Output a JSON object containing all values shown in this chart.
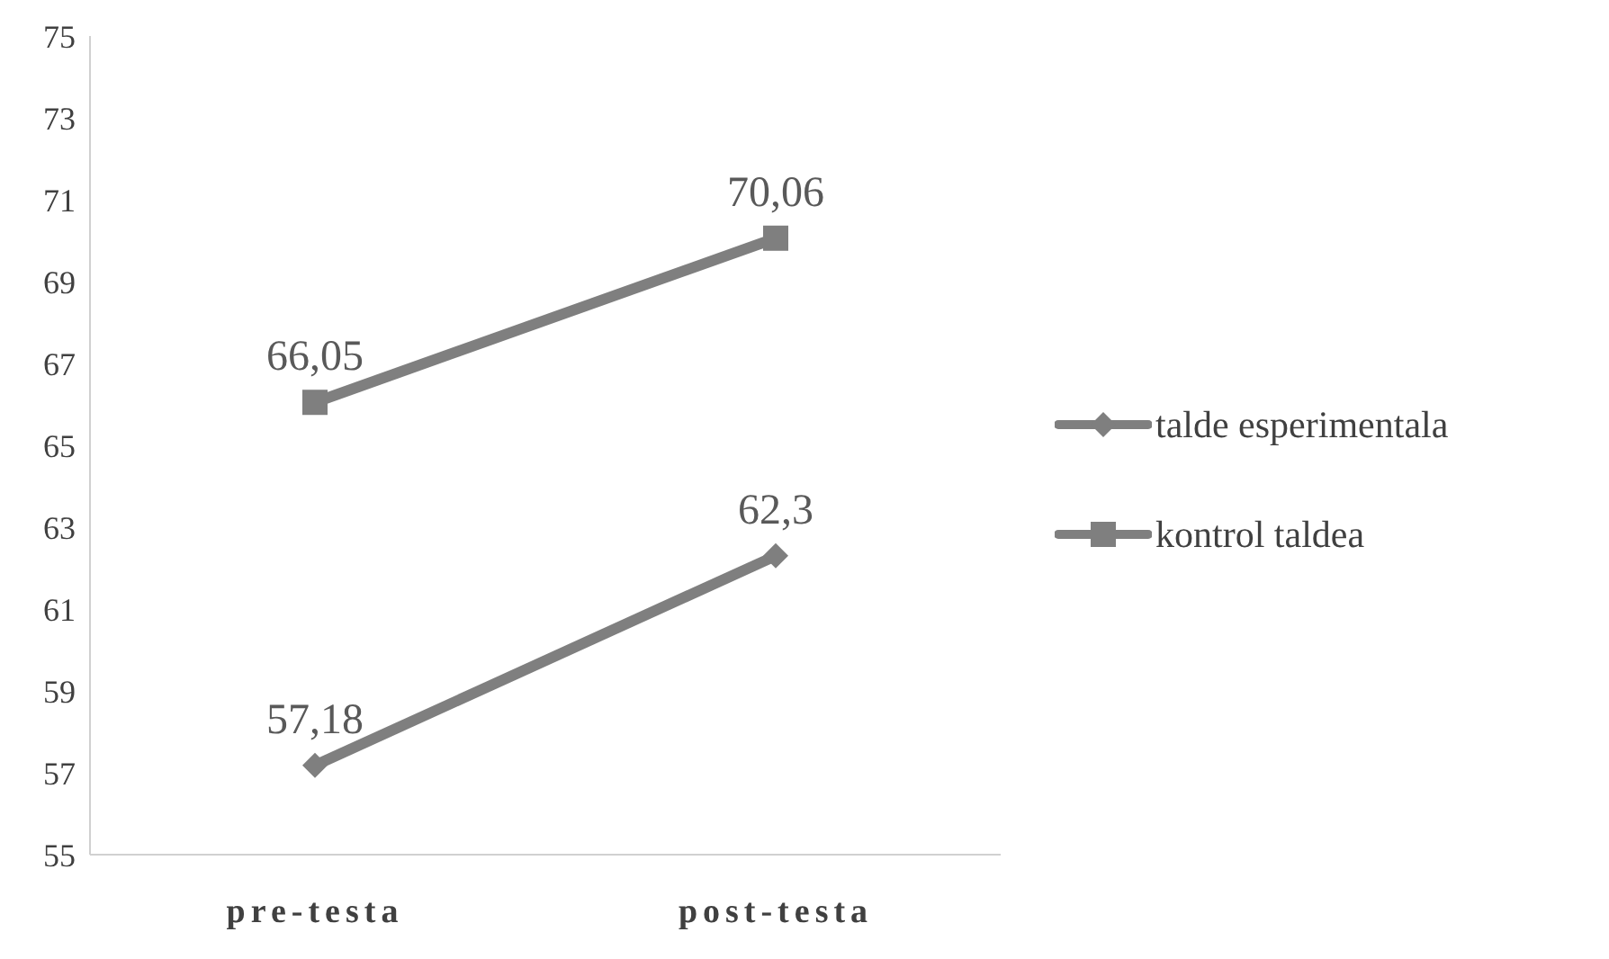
{
  "chart_data": {
    "type": "line",
    "categories": [
      "pre-testa",
      "post-testa"
    ],
    "series": [
      {
        "name": "talde esperimentala",
        "color": "#7f7f7f",
        "values": [
          57.18,
          62.3
        ],
        "value_labels": [
          "57,18",
          "62,3"
        ],
        "marker": "diamond"
      },
      {
        "name": "kontrol taldea",
        "color": "#7f7f7f",
        "values": [
          66.05,
          70.06
        ],
        "value_labels": [
          "66,05",
          "70,06"
        ],
        "marker": "square"
      }
    ],
    "ylim": [
      55,
      75
    ],
    "yticks": [
      55,
      57,
      59,
      61,
      63,
      65,
      67,
      69,
      71,
      73,
      75
    ],
    "grid": false,
    "legend": "right"
  }
}
